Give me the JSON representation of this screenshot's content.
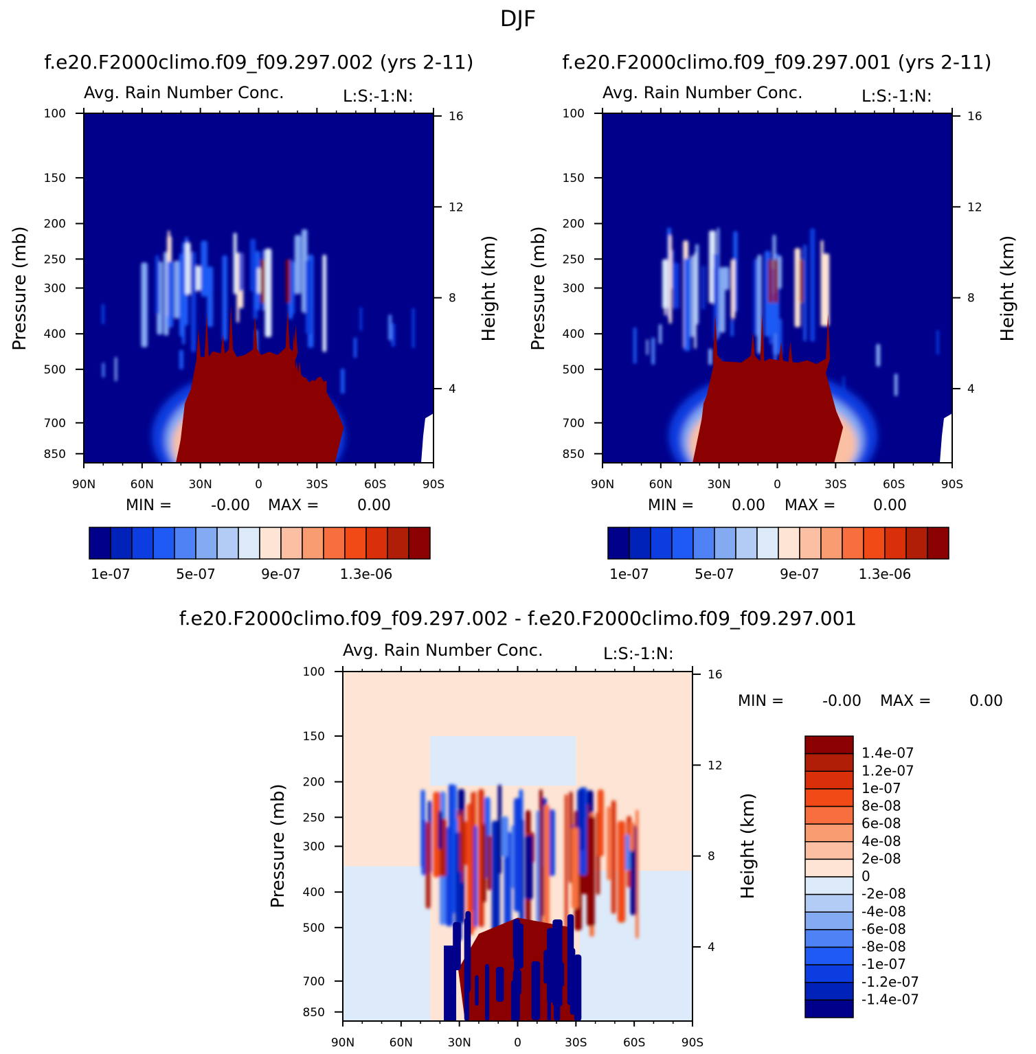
{
  "title": "DJF",
  "chart_data": [
    {
      "type": "heatmap",
      "case_title": "f.e20.F2000climo.f09_f09.297.002 (yrs 2-11)",
      "variable": "Avg. Rain Number Conc.",
      "level_tag": "L:S:-1:N:",
      "xlabel": "",
      "ylabel": "Pressure (mb)",
      "ylabel_right": "Height (km)",
      "x_ticks": [
        "90N",
        "60N",
        "30N",
        "0",
        "30S",
        "60S",
        "90S"
      ],
      "y_ticks": [
        "100",
        "150",
        "200",
        "250",
        "300",
        "400",
        "500",
        "700",
        "850"
      ],
      "y_ticks_right": [
        "16",
        "12",
        "8",
        "4"
      ],
      "stats": {
        "min_label": "MIN =",
        "min": "-0.00",
        "max_label": "MAX =",
        "max": "0.00"
      },
      "colorbar_labels": [
        "1e-07",
        "5e-07",
        "9e-07",
        "1.3e-06"
      ],
      "levels": [
        1e-07,
        2e-07,
        3e-07,
        4e-07,
        5e-07,
        6e-07,
        7e-07,
        8e-07,
        9e-07,
        1e-06,
        1.1e-06,
        1.2e-06,
        1.3e-06,
        1.4e-06,
        1.5e-06
      ],
      "colors": [
        "#00008b",
        "#0022b8",
        "#0b3de0",
        "#1f5af5",
        "#4f83f5",
        "#84aaf2",
        "#b3ccf5",
        "#ddeaf9",
        "#fde4d4",
        "#fbc0a3",
        "#f99c72",
        "#f76f3e",
        "#f24a17",
        "#d9300a",
        "#b01e08",
        "#8b0000"
      ],
      "features": [
        {
          "type": "core",
          "lat_range": [
            -18,
            32
          ],
          "p_top": 450,
          "value": 1.5e-06
        },
        {
          "type": "core",
          "lat_range": [
            -35,
            -17
          ],
          "p_top": 530,
          "value": 1.5e-06
        },
        {
          "type": "upper_cloud",
          "lat_range": [
            -35,
            62
          ],
          "p_range": [
            220,
            340
          ],
          "value": 5e-07
        }
      ]
    },
    {
      "type": "heatmap",
      "case_title": "f.e20.F2000climo.f09_f09.297.001 (yrs 2-11)",
      "variable": "Avg. Rain Number Conc.",
      "level_tag": "L:S:-1:N:",
      "xlabel": "",
      "ylabel": "Pressure (mb)",
      "ylabel_right": "Height (km)",
      "x_ticks": [
        "90N",
        "60N",
        "30N",
        "0",
        "30S",
        "60S",
        "90S"
      ],
      "y_ticks": [
        "100",
        "150",
        "200",
        "250",
        "300",
        "400",
        "500",
        "700",
        "850"
      ],
      "y_ticks_right": [
        "16",
        "12",
        "8",
        "4"
      ],
      "stats": {
        "min_label": "MIN =",
        "min": "0.00",
        "max_label": "MAX =",
        "max": "0.00"
      },
      "colorbar_labels": [
        "1e-07",
        "5e-07",
        "9e-07",
        "1.3e-06"
      ],
      "levels": [
        1e-07,
        2e-07,
        3e-07,
        4e-07,
        5e-07,
        6e-07,
        7e-07,
        8e-07,
        9e-07,
        1e-06,
        1.1e-06,
        1.2e-06,
        1.3e-06,
        1.4e-06,
        1.5e-06
      ],
      "colors": [
        "#00008b",
        "#0022b8",
        "#0b3de0",
        "#1f5af5",
        "#4f83f5",
        "#84aaf2",
        "#b3ccf5",
        "#ddeaf9",
        "#fde4d4",
        "#fbc0a3",
        "#f99c72",
        "#f76f3e",
        "#f24a17",
        "#d9300a",
        "#b01e08",
        "#8b0000"
      ],
      "features": [
        {
          "type": "core",
          "lat_range": [
            -25,
            33
          ],
          "p_top": 470,
          "value": 1.5e-06
        },
        {
          "type": "upper_cloud",
          "lat_range": [
            -35,
            62
          ],
          "p_range": [
            220,
            340
          ],
          "value": 5e-07
        }
      ]
    },
    {
      "type": "heatmap",
      "case_title": "f.e20.F2000climo.f09_f09.297.002 - f.e20.F2000climo.f09_f09.297.001",
      "variable": "Avg. Rain Number Conc.",
      "level_tag": "L:S:-1:N:",
      "xlabel": "",
      "ylabel": "Pressure (mb)",
      "ylabel_right": "Height (km)",
      "x_ticks": [
        "90N",
        "60N",
        "30N",
        "0",
        "30S",
        "60S",
        "90S"
      ],
      "y_ticks": [
        "100",
        "150",
        "200",
        "250",
        "300",
        "400",
        "500",
        "700",
        "850"
      ],
      "y_ticks_right": [
        "16",
        "12",
        "8",
        "4"
      ],
      "stats": {
        "min_label": "MIN =",
        "min": "-0.00",
        "max_label": "MAX =",
        "max": "0.00"
      },
      "colorbar_labels": [
        "1.4e-07",
        "1.2e-07",
        "1e-07",
        "8e-08",
        "6e-08",
        "4e-08",
        "2e-08",
        "0",
        "-2e-08",
        "-4e-08",
        "-6e-08",
        "-8e-08",
        "-1e-07",
        "-1.2e-07",
        "-1.4e-07"
      ],
      "levels": [
        -1.4e-07,
        -1.2e-07,
        -1e-07,
        -8e-08,
        -6e-08,
        -4e-08,
        -2e-08,
        0,
        2e-08,
        4e-08,
        6e-08,
        8e-08,
        1e-07,
        1.2e-07,
        1.4e-07
      ],
      "colors": [
        "#00008b",
        "#0022b8",
        "#0b3de0",
        "#1f5af5",
        "#4f83f5",
        "#84aaf2",
        "#b3ccf5",
        "#ddeaf9",
        "#fde4d4",
        "#fbc0a3",
        "#f99c72",
        "#f76f3e",
        "#f24a17",
        "#d9300a",
        "#b01e08",
        "#8b0000"
      ]
    }
  ]
}
